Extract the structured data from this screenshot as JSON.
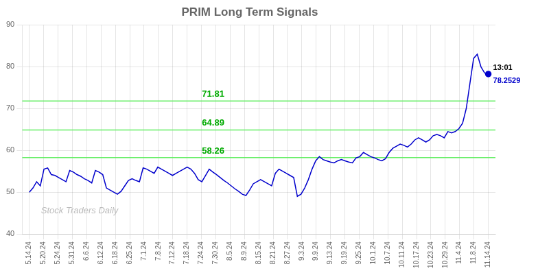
{
  "chart_data": {
    "type": "line",
    "title": "PRIM Long Term Signals",
    "color": "#0000cc",
    "x": [
      0,
      0.256,
      0.512,
      0.768,
      1.024,
      1.28,
      1.536,
      1.792,
      2.048,
      2.304,
      2.56,
      2.816,
      3.072,
      3.328,
      3.584,
      3.84,
      4.096,
      4.352,
      4.608,
      4.864,
      5.12,
      5.376,
      5.632,
      5.888,
      6.144,
      6.4,
      6.656,
      6.912,
      7.168,
      7.424,
      7.68,
      7.936,
      8.192,
      8.448,
      8.704,
      8.96,
      9.216,
      9.472,
      9.728,
      9.984,
      10.24,
      10.496,
      10.752,
      11.008,
      11.264,
      11.52,
      11.776,
      12.032,
      12.288,
      12.544,
      12.8,
      13.056,
      13.312,
      13.568,
      13.824,
      14.08,
      14.336,
      14.592,
      14.848,
      15.104,
      15.36,
      15.616,
      15.872,
      16.128,
      16.384,
      16.64,
      16.896,
      17.152,
      17.408,
      17.664,
      17.92,
      18.176,
      18.432,
      18.688,
      18.944,
      19.2,
      19.456,
      19.712,
      19.968,
      20.224,
      20.48,
      20.736,
      20.992,
      21.248,
      21.504,
      21.76,
      22.016,
      22.272,
      22.528,
      22.784,
      23.04,
      23.296,
      23.552,
      23.808,
      24.064,
      24.32,
      24.576,
      24.832,
      25.088,
      25.344,
      25.6,
      25.856,
      26.112,
      26.368,
      26.624,
      26.88,
      27.136,
      27.392,
      27.648,
      27.904,
      28.16,
      28.416,
      28.672,
      28.928,
      29.184,
      29.44,
      29.696,
      29.952,
      30.208,
      30.464,
      30.72,
      30.976,
      31.232,
      31.488,
      31.744,
      32
    ],
    "values": [
      50.0,
      51.0,
      52.5,
      51.5,
      55.5,
      55.8,
      54.2,
      54.0,
      53.5,
      53.0,
      52.5,
      55.2,
      54.8,
      54.2,
      53.8,
      53.2,
      52.8,
      52.2,
      55.2,
      54.8,
      54.2,
      51.0,
      50.5,
      50.0,
      49.5,
      50.2,
      51.5,
      52.8,
      53.2,
      52.8,
      52.5,
      55.8,
      55.5,
      55.0,
      54.5,
      56.0,
      55.5,
      55.0,
      54.5,
      54.0,
      54.5,
      55.0,
      55.5,
      56.0,
      55.5,
      54.5,
      53.0,
      52.5,
      54.0,
      55.5,
      54.8,
      54.2,
      53.5,
      52.8,
      52.2,
      51.5,
      50.8,
      50.2,
      49.5,
      49.2,
      50.5,
      52.0,
      52.5,
      53.0,
      52.5,
      52.0,
      51.5,
      54.5,
      55.5,
      55.0,
      54.5,
      54.0,
      53.5,
      49.0,
      49.5,
      51.0,
      53.0,
      55.5,
      57.5,
      58.5,
      57.8,
      57.5,
      57.2,
      57.0,
      57.5,
      57.8,
      57.5,
      57.2,
      57.0,
      58.2,
      58.5,
      59.5,
      59.0,
      58.5,
      58.2,
      57.8,
      57.5,
      58.0,
      59.5,
      60.5,
      61.0,
      61.5,
      61.2,
      60.8,
      61.5,
      62.5,
      63.0,
      62.5,
      62.0,
      62.5,
      63.5,
      63.8,
      63.5,
      63.0,
      64.5,
      64.2,
      64.5,
      65.2,
      66.5,
      70.0,
      76.0,
      82.0,
      83.0,
      80.0,
      78.5,
      78.2529
    ],
    "xlim": [
      -0.5,
      32.5
    ],
    "xticks": [
      {
        "value": 0,
        "label": "5.14.24"
      },
      {
        "value": 1,
        "label": "5.20.24"
      },
      {
        "value": 2,
        "label": "5.24.24"
      },
      {
        "value": 3,
        "label": "5.31.24"
      },
      {
        "value": 4,
        "label": "6.6.24"
      },
      {
        "value": 5,
        "label": "6.12.24"
      },
      {
        "value": 6,
        "label": "6.18.24"
      },
      {
        "value": 7,
        "label": "6.25.24"
      },
      {
        "value": 8,
        "label": "7.1.24"
      },
      {
        "value": 9,
        "label": "7.8.24"
      },
      {
        "value": 10,
        "label": "7.12.24"
      },
      {
        "value": 11,
        "label": "7.18.24"
      },
      {
        "value": 12,
        "label": "7.24.24"
      },
      {
        "value": 13,
        "label": "7.30.24"
      },
      {
        "value": 14,
        "label": "8.5.24"
      },
      {
        "value": 15,
        "label": "8.9.24"
      },
      {
        "value": 16,
        "label": "8.15.24"
      },
      {
        "value": 17,
        "label": "8.21.24"
      },
      {
        "value": 18,
        "label": "8.27.24"
      },
      {
        "value": 19,
        "label": "9.3.24"
      },
      {
        "value": 20,
        "label": "9.9.24"
      },
      {
        "value": 21,
        "label": "9.13.24"
      },
      {
        "value": 22,
        "label": "9.19.24"
      },
      {
        "value": 23,
        "label": "9.25.24"
      },
      {
        "value": 24,
        "label": "10.1.24"
      },
      {
        "value": 25,
        "label": "10.7.24"
      },
      {
        "value": 26,
        "label": "10.11.24"
      },
      {
        "value": 27,
        "label": "10.17.24"
      },
      {
        "value": 28,
        "label": "10.23.24"
      },
      {
        "value": 29,
        "label": "10.29.24"
      },
      {
        "value": 30,
        "label": "11.4.24"
      },
      {
        "value": 31,
        "label": "11.8.24"
      },
      {
        "value": 32,
        "label": "11.14.24"
      }
    ],
    "ylim": [
      40,
      90
    ],
    "yticks": [
      40,
      50,
      60,
      70,
      80,
      90
    ],
    "grid": true,
    "horizontal_lines": {
      "color": "#66ee66",
      "lines": [
        {
          "value": 71.81,
          "label": "71.81"
        },
        {
          "value": 64.89,
          "label": "64.89"
        },
        {
          "value": 58.26,
          "label": "58.26"
        }
      ]
    },
    "annotations": [
      "13:01",
      "78.2529"
    ],
    "watermark": "Stock Traders Daily"
  }
}
